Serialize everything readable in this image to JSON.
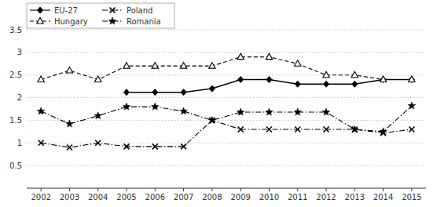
{
  "chart_data": {
    "type": "line",
    "x": [
      2002,
      2003,
      2004,
      2005,
      2006,
      2007,
      2008,
      2009,
      2010,
      2011,
      2012,
      2013,
      2014,
      2015
    ],
    "series": [
      {
        "name": "EU-27",
        "color": "black",
        "marker": "diamond",
        "line_style": "solid",
        "values": [
          null,
          null,
          null,
          2.12,
          2.12,
          2.12,
          2.2,
          2.4,
          2.4,
          2.3,
          2.3,
          2.3,
          2.4,
          2.4
        ]
      },
      {
        "name": "Poland",
        "color": "black",
        "marker": "x",
        "line_style": "dashdot",
        "values": [
          1.0,
          0.9,
          1.0,
          0.92,
          0.92,
          0.92,
          1.5,
          1.3,
          1.3,
          1.3,
          1.3,
          1.3,
          1.22,
          1.3
        ]
      },
      {
        "name": "Hungary",
        "color": "black",
        "marker": "triangle-open",
        "line_style": "dashed",
        "values": [
          2.4,
          2.6,
          2.4,
          2.7,
          2.7,
          2.7,
          2.7,
          2.9,
          2.9,
          2.75,
          2.5,
          2.5,
          2.4,
          2.4
        ]
      },
      {
        "name": "Romania",
        "color": "black",
        "marker": "star",
        "line_style": "dashdot",
        "values": [
          1.7,
          1.42,
          1.6,
          1.8,
          1.8,
          1.7,
          1.5,
          1.68,
          1.68,
          1.68,
          1.68,
          1.3,
          1.25,
          1.82
        ]
      }
    ],
    "xlim": [
      2001.5,
      2015.5
    ],
    "xticks": [
      2002,
      2003,
      2004,
      2005,
      2006,
      2007,
      2008,
      2009,
      2010,
      2011,
      2012,
      2013,
      2014,
      2015
    ],
    "ylim": [
      0,
      3.5
    ],
    "yticks": [
      0.5,
      1,
      1.5,
      2,
      2.5,
      3,
      3.5
    ],
    "grid": true,
    "legend": "upper left"
  }
}
